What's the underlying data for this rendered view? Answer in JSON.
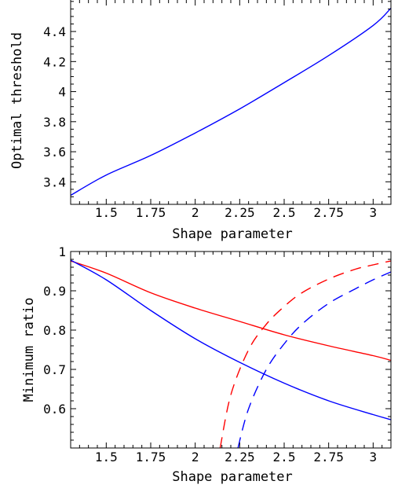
{
  "chart_data": [
    {
      "type": "line",
      "title": "",
      "xlabel": "Shape parameter",
      "ylabel": "Optimal threshold",
      "xlim": [
        1.3,
        3.1
      ],
      "ylim": [
        3.25,
        4.62
      ],
      "x_ticks": [
        1.5,
        1.75,
        2,
        2.25,
        2.5,
        2.75,
        3
      ],
      "x_tick_labels": [
        "1.5",
        "1.75",
        "2",
        "2.25",
        "2.5",
        "2.75",
        "3"
      ],
      "y_ticks": [
        3.4,
        3.6,
        3.8,
        4,
        4.2,
        4.4
      ],
      "y_tick_labels": [
        "3.4",
        "3.6",
        "3.8",
        "4",
        "4.2",
        "4.4"
      ],
      "grid": false,
      "series": [
        {
          "color": "#0000ff",
          "dash": "solid",
          "x": [
            1.3,
            1.5,
            1.75,
            2.0,
            2.25,
            2.5,
            2.75,
            3.0,
            3.1
          ],
          "y": [
            3.31,
            3.445,
            3.575,
            3.725,
            3.885,
            4.06,
            4.24,
            4.44,
            4.555
          ]
        }
      ]
    },
    {
      "type": "line",
      "title": "",
      "xlabel": "Shape parameter",
      "ylabel": "Minimum ratio",
      "xlim": [
        1.3,
        3.1
      ],
      "ylim": [
        0.5,
        1.0
      ],
      "x_ticks": [
        1.5,
        1.75,
        2,
        2.25,
        2.5,
        2.75,
        3
      ],
      "x_tick_labels": [
        "1.5",
        "1.75",
        "2",
        "2.25",
        "2.5",
        "2.75",
        "3"
      ],
      "y_ticks": [
        0.6,
        0.7,
        0.8,
        0.9,
        1
      ],
      "y_tick_labels": [
        "0.6",
        "0.7",
        "0.8",
        "0.9",
        "1"
      ],
      "grid": false,
      "series": [
        {
          "color": "#ff0000",
          "dash": "solid",
          "x": [
            1.3,
            1.5,
            1.75,
            2.0,
            2.25,
            2.5,
            2.75,
            3.0,
            3.1
          ],
          "y": [
            0.976,
            0.945,
            0.895,
            0.856,
            0.822,
            0.788,
            0.76,
            0.735,
            0.723
          ]
        },
        {
          "color": "#0000ff",
          "dash": "solid",
          "x": [
            1.3,
            1.5,
            1.75,
            2.0,
            2.25,
            2.5,
            2.75,
            3.0,
            3.1
          ],
          "y": [
            0.978,
            0.928,
            0.85,
            0.778,
            0.718,
            0.665,
            0.62,
            0.585,
            0.572
          ]
        },
        {
          "color": "#ff0000",
          "dash": "dashed",
          "x": [
            2.14,
            2.2,
            2.3,
            2.4,
            2.5,
            2.6,
            2.75,
            2.9,
            3.0,
            3.1
          ],
          "y": [
            0.5,
            0.635,
            0.75,
            0.815,
            0.86,
            0.895,
            0.93,
            0.955,
            0.966,
            0.976
          ]
        },
        {
          "color": "#0000ff",
          "dash": "dashed",
          "x": [
            2.24,
            2.3,
            2.4,
            2.5,
            2.6,
            2.75,
            2.9,
            3.0,
            3.1
          ],
          "y": [
            0.5,
            0.6,
            0.7,
            0.765,
            0.815,
            0.868,
            0.905,
            0.928,
            0.948
          ]
        }
      ]
    }
  ]
}
